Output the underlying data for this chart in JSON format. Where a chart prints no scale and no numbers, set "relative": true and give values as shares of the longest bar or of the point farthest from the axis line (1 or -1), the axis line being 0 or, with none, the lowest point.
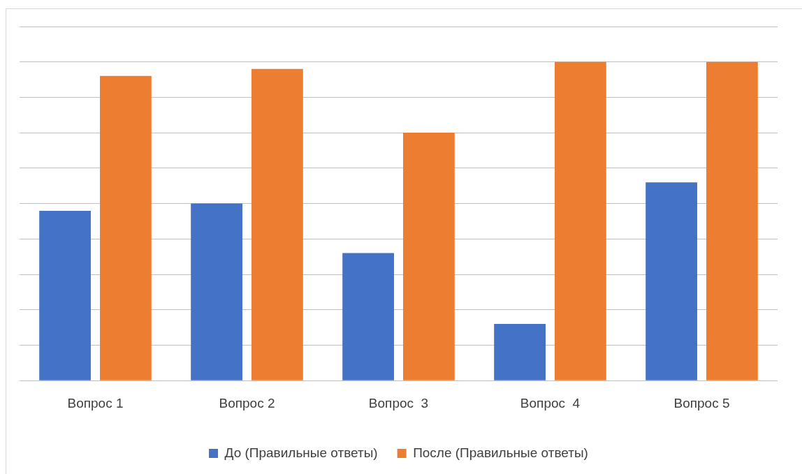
{
  "chart_data": {
    "type": "bar",
    "categories": [
      "Вопрос 1",
      "Вопрос 2",
      "Вопрос  3",
      "Вопрос  4",
      "Вопрос 5"
    ],
    "relative": true,
    "grid": "y",
    "legend": "bottom",
    "series": [
      {
        "name": "До (Правильные ответы)",
        "color": "#4472c4",
        "values": [
          0.533,
          0.556,
          0.4,
          0.178,
          0.622
        ]
      },
      {
        "name": "После (Правильные ответы)",
        "color": "#ed7d31",
        "values": [
          0.956,
          0.978,
          0.778,
          1,
          1
        ]
      }
    ]
  }
}
